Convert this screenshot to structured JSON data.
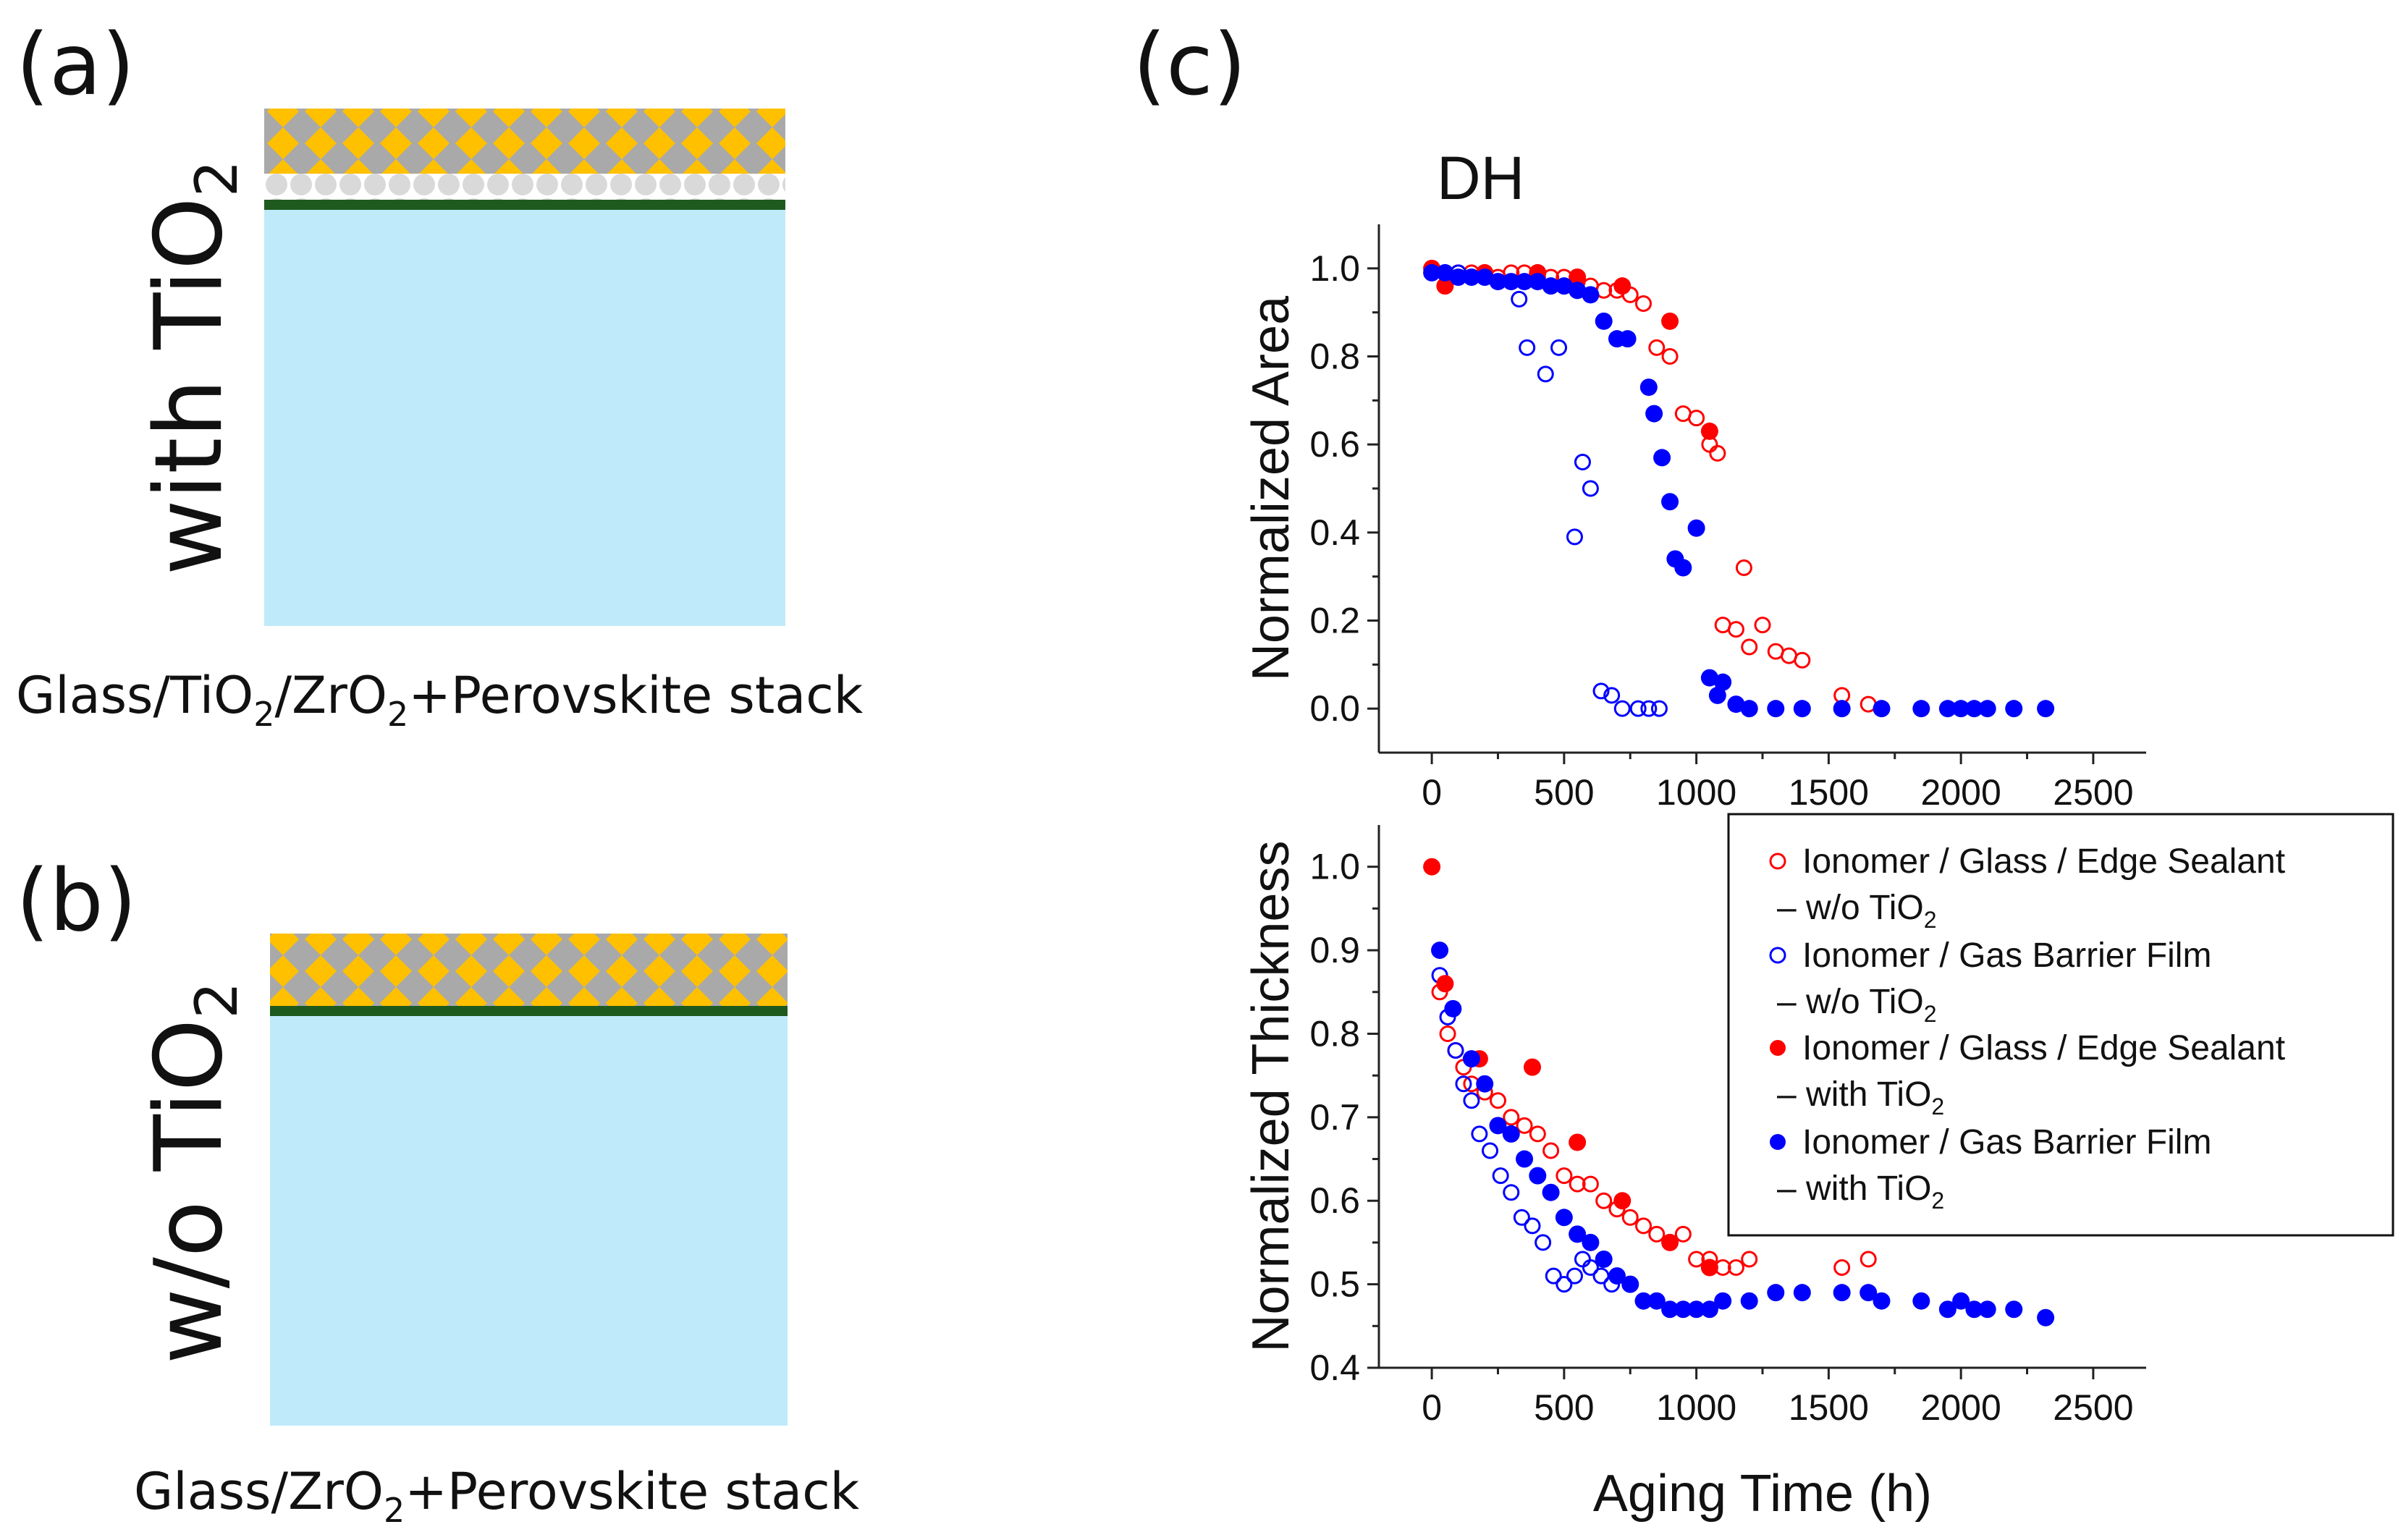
{
  "panels": {
    "a": {
      "letter": "(a)",
      "side_label_main": "with TiO",
      "side_label_sub": "2",
      "caption_parts": [
        "Glass/TiO",
        "2",
        "/ZrO",
        "2",
        "+Perovskite stack"
      ]
    },
    "b": {
      "letter": "(b)",
      "side_label_main": "w/o TiO",
      "side_label_sub": "2",
      "caption_parts": [
        "Glass/ZrO",
        "2",
        "+Perovskite stack"
      ]
    },
    "c": {
      "letter": "(c)"
    }
  },
  "colors": {
    "glass": "#bfeafa",
    "perovskite_diamond": "#ffc000",
    "perovskite_bg": "#a9a9a9",
    "tio2_beads": "#d9d9d9",
    "contact_layer": "#1e5a1e",
    "red": "#ff0000",
    "blue": "#0000ff"
  },
  "legend": {
    "entries": [
      {
        "line1": "Ionomer / Glass / Edge Sealant",
        "line2": "– w/o TiO",
        "sub": "2",
        "color": "#ff0000",
        "filled": false
      },
      {
        "line1": "Ionomer / Gas Barrier Film",
        "line2": "– w/o TiO",
        "sub": "2",
        "color": "#0000ff",
        "filled": false
      },
      {
        "line1": "Ionomer / Glass / Edge Sealant",
        "line2": "– with TiO",
        "sub": "2",
        "color": "#ff0000",
        "filled": true
      },
      {
        "line1": "Ionomer / Gas Barrier Film",
        "line2": "– with TiO",
        "sub": "2",
        "color": "#0000ff",
        "filled": true
      }
    ]
  },
  "chart_data": [
    {
      "type": "scatter",
      "title": "DH",
      "xlabel": "",
      "ylabel": "Normalized Area",
      "xlim": [
        -200,
        2700
      ],
      "ylim": [
        -0.1,
        1.1
      ],
      "xticks": [
        0,
        500,
        1000,
        1500,
        2000,
        2500
      ],
      "yticks": [
        0.0,
        0.2,
        0.4,
        0.6,
        0.8,
        1.0
      ],
      "series": [
        {
          "name": "Ionomer / Glass / Edge Sealant – w/o TiO2",
          "color": "#ff0000",
          "filled": false,
          "x": [
            0,
            50,
            100,
            150,
            200,
            250,
            300,
            350,
            400,
            450,
            500,
            550,
            600,
            650,
            700,
            750,
            800,
            850,
            900,
            950,
            1000,
            1050,
            1080,
            1100,
            1150,
            1180,
            1200,
            1250,
            1300,
            1350,
            1400,
            1550,
            1650
          ],
          "y": [
            1.0,
            0.99,
            0.99,
            0.99,
            0.99,
            0.98,
            0.99,
            0.99,
            0.98,
            0.98,
            0.98,
            0.97,
            0.96,
            0.95,
            0.95,
            0.94,
            0.92,
            0.82,
            0.8,
            0.67,
            0.66,
            0.6,
            0.58,
            0.19,
            0.18,
            0.32,
            0.14,
            0.19,
            0.13,
            0.12,
            0.11,
            0.03,
            0.01
          ]
        },
        {
          "name": "Ionomer / Gas Barrier Film – w/o TiO2",
          "color": "#0000ff",
          "filled": false,
          "x": [
            0,
            100,
            200,
            300,
            330,
            360,
            400,
            430,
            480,
            540,
            570,
            600,
            640,
            680,
            720,
            780,
            820,
            860
          ],
          "y": [
            1.0,
            0.99,
            0.98,
            0.97,
            0.93,
            0.82,
            0.97,
            0.76,
            0.82,
            0.39,
            0.56,
            0.5,
            0.04,
            0.03,
            0.0,
            0.0,
            0.0,
            0.0
          ]
        },
        {
          "name": "Ionomer / Glass / Edge Sealant – with TiO2",
          "color": "#ff0000",
          "filled": true,
          "x": [
            0,
            50,
            200,
            400,
            550,
            720,
            900,
            1050
          ],
          "y": [
            1.0,
            0.96,
            0.99,
            0.99,
            0.98,
            0.96,
            0.88,
            0.63
          ]
        },
        {
          "name": "Ionomer / Gas Barrier Film – with TiO2",
          "color": "#0000ff",
          "filled": true,
          "x": [
            0,
            50,
            100,
            150,
            200,
            250,
            300,
            350,
            400,
            450,
            500,
            550,
            600,
            650,
            700,
            740,
            820,
            840,
            870,
            900,
            920,
            950,
            1000,
            1050,
            1080,
            1100,
            1150,
            1200,
            1300,
            1400,
            1550,
            1700,
            1850,
            1950,
            2000,
            2050,
            2100,
            2200,
            2320
          ],
          "y": [
            0.99,
            0.99,
            0.98,
            0.98,
            0.98,
            0.97,
            0.97,
            0.97,
            0.97,
            0.96,
            0.96,
            0.95,
            0.94,
            0.88,
            0.84,
            0.84,
            0.73,
            0.67,
            0.57,
            0.47,
            0.34,
            0.32,
            0.41,
            0.07,
            0.03,
            0.06,
            0.01,
            0.0,
            0.0,
            0.0,
            0.0,
            0.0,
            0.0,
            0.0,
            0.0,
            0.0,
            0.0,
            0.0,
            0.0
          ]
        }
      ]
    },
    {
      "type": "scatter",
      "title": "",
      "xlabel": "Aging Time (h)",
      "ylabel": "Normalized Thickness",
      "xlim": [
        -200,
        2700
      ],
      "ylim": [
        0.4,
        1.05
      ],
      "xticks": [
        0,
        500,
        1000,
        1500,
        2000,
        2500
      ],
      "yticks": [
        0.4,
        0.5,
        0.6,
        0.7,
        0.8,
        0.9,
        1.0
      ],
      "series": [
        {
          "name": "Ionomer / Glass / Edge Sealant – w/o TiO2",
          "color": "#ff0000",
          "filled": false,
          "x": [
            30,
            60,
            90,
            120,
            150,
            200,
            250,
            300,
            350,
            400,
            450,
            500,
            550,
            600,
            650,
            700,
            750,
            800,
            850,
            900,
            950,
            1000,
            1050,
            1100,
            1150,
            1200,
            1550,
            1650
          ],
          "y": [
            0.85,
            0.8,
            0.78,
            0.76,
            0.74,
            0.73,
            0.72,
            0.7,
            0.69,
            0.68,
            0.66,
            0.63,
            0.62,
            0.62,
            0.6,
            0.59,
            0.58,
            0.57,
            0.56,
            0.55,
            0.56,
            0.53,
            0.53,
            0.52,
            0.52,
            0.53,
            0.52,
            0.53
          ]
        },
        {
          "name": "Ionomer / Gas Barrier Film – w/o TiO2",
          "color": "#0000ff",
          "filled": false,
          "x": [
            30,
            60,
            90,
            120,
            150,
            180,
            220,
            260,
            300,
            340,
            380,
            420,
            460,
            500,
            540,
            570,
            600,
            640,
            680
          ],
          "y": [
            0.87,
            0.82,
            0.78,
            0.74,
            0.72,
            0.68,
            0.66,
            0.63,
            0.61,
            0.58,
            0.57,
            0.55,
            0.51,
            0.5,
            0.51,
            0.53,
            0.52,
            0.51,
            0.5
          ]
        },
        {
          "name": "Ionomer / Glass / Edge Sealant – with TiO2",
          "color": "#ff0000",
          "filled": true,
          "x": [
            0,
            50,
            180,
            380,
            550,
            720,
            900,
            1050
          ],
          "y": [
            1.0,
            0.86,
            0.77,
            0.76,
            0.67,
            0.6,
            0.55,
            0.52
          ]
        },
        {
          "name": "Ionomer / Gas Barrier Film – with TiO2",
          "color": "#0000ff",
          "filled": true,
          "x": [
            30,
            80,
            150,
            200,
            250,
            300,
            350,
            400,
            450,
            500,
            550,
            600,
            650,
            700,
            750,
            800,
            850,
            900,
            950,
            1000,
            1050,
            1100,
            1200,
            1300,
            1400,
            1550,
            1650,
            1700,
            1850,
            1950,
            2000,
            2050,
            2100,
            2200,
            2320
          ],
          "y": [
            0.9,
            0.83,
            0.77,
            0.74,
            0.69,
            0.68,
            0.65,
            0.63,
            0.61,
            0.58,
            0.56,
            0.55,
            0.53,
            0.51,
            0.5,
            0.48,
            0.48,
            0.47,
            0.47,
            0.47,
            0.47,
            0.48,
            0.48,
            0.49,
            0.49,
            0.49,
            0.49,
            0.48,
            0.48,
            0.47,
            0.48,
            0.47,
            0.47,
            0.47,
            0.46
          ]
        }
      ]
    }
  ]
}
